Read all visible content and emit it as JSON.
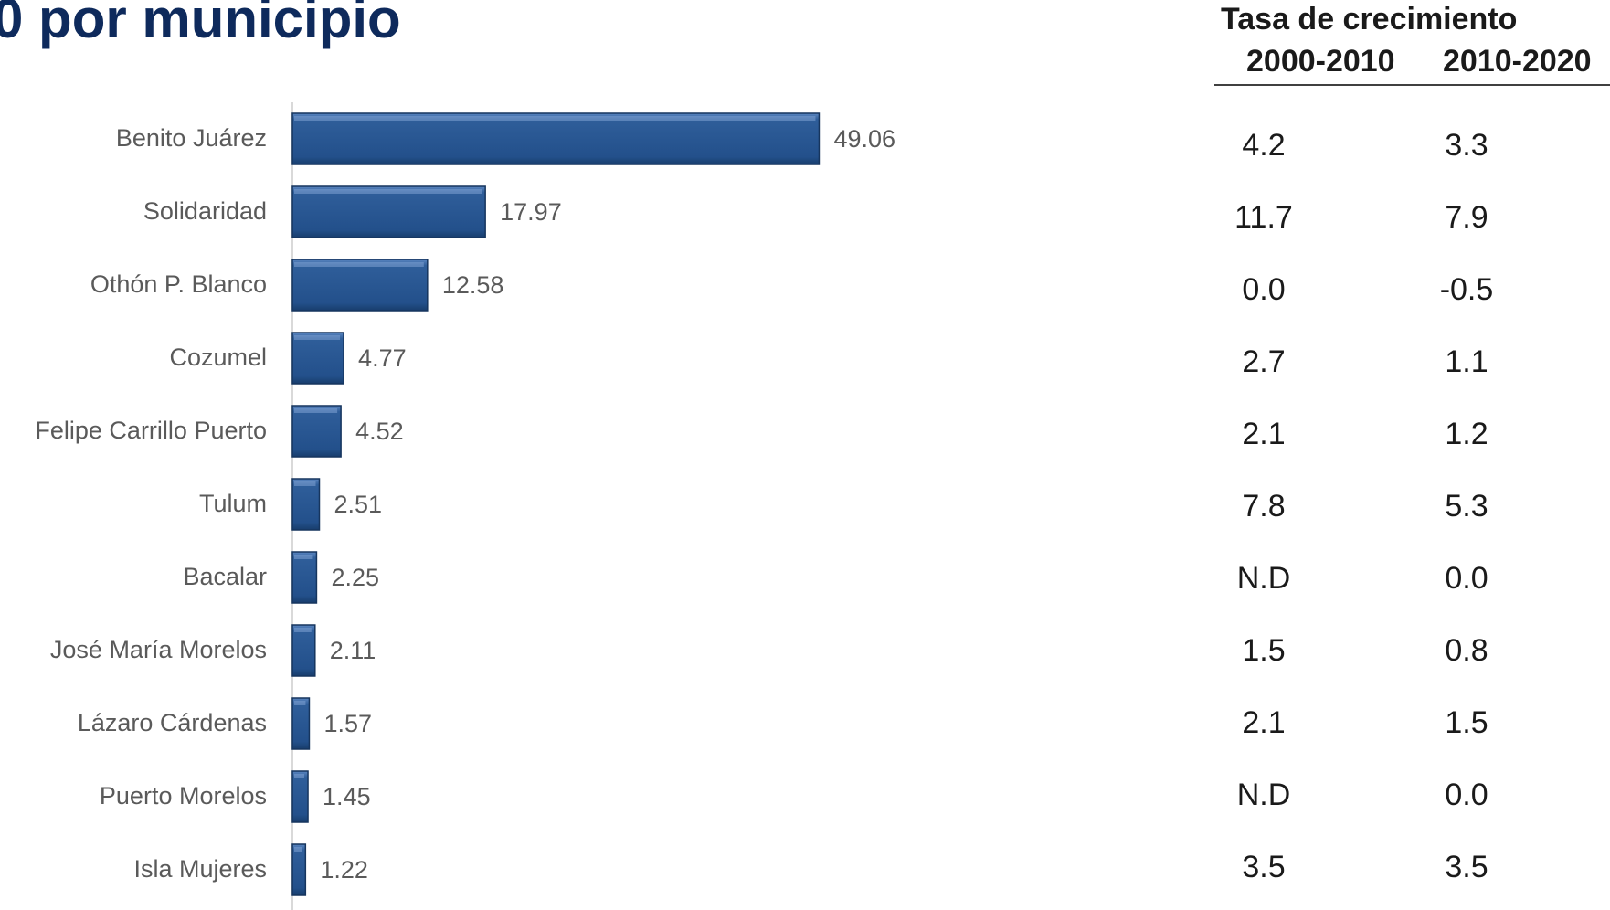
{
  "page": {
    "title": "0 por municipio"
  },
  "chart_data": {
    "type": "bar",
    "orientation": "horizontal",
    "title": "",
    "xlabel": "",
    "ylabel": "",
    "categories": [
      "Benito Juárez",
      "Solidaridad",
      "Othón P. Blanco",
      "Cozumel",
      "Felipe Carrillo Puerto",
      "Tulum",
      "Bacalar",
      "José María Morelos",
      "Lázaro Cárdenas",
      "Puerto Morelos",
      "Isla Mujeres"
    ],
    "values": [
      49.06,
      17.97,
      12.58,
      4.77,
      4.52,
      2.51,
      2.25,
      2.11,
      1.57,
      1.45,
      1.22
    ],
    "value_labels": [
      "49.06",
      "17.97",
      "12.58",
      "4.77",
      "4.52",
      "2.51",
      "2.25",
      "2.11",
      "1.57",
      "1.45",
      "1.22"
    ],
    "xlim": [
      0,
      100
    ],
    "grid": false,
    "legend": "none",
    "bar_color": "#2a5590"
  },
  "growth_table": {
    "title": "Tasa de crecimiento",
    "periods": [
      "2000-2010",
      "2010-2020"
    ],
    "rows": [
      [
        "4.2",
        "3.3"
      ],
      [
        "11.7",
        "7.9"
      ],
      [
        "0.0",
        "-0.5"
      ],
      [
        "2.7",
        "1.1"
      ],
      [
        "2.1",
        "1.2"
      ],
      [
        "7.8",
        "5.3"
      ],
      [
        "N.D",
        "0.0"
      ],
      [
        "1.5",
        "0.8"
      ],
      [
        "2.1",
        "1.5"
      ],
      [
        "N.D",
        "0.0"
      ],
      [
        "3.5",
        "3.5"
      ]
    ]
  }
}
